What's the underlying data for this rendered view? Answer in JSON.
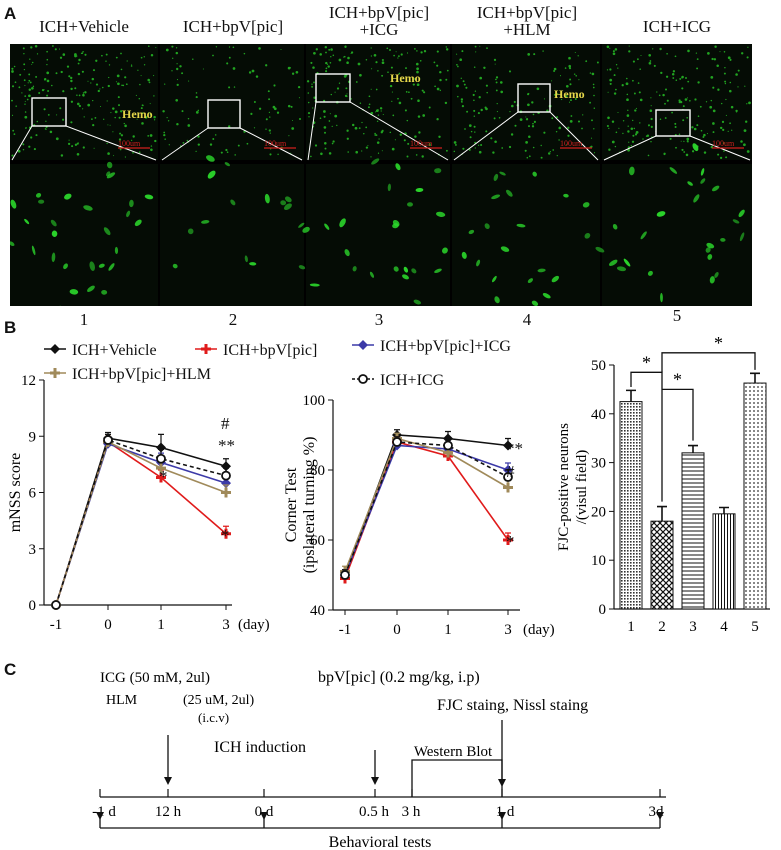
{
  "panels": {
    "a": "A",
    "b": "B",
    "c": "C"
  },
  "panel_a": {
    "columns": [
      {
        "title_line1": "ICH+Vehicle",
        "title_line2": "",
        "number": "1",
        "hemo": "Hemo",
        "scale_bar": "100um"
      },
      {
        "title_line1": "ICH+bpV[pic]",
        "title_line2": "",
        "number": "2",
        "hemo": "",
        "scale_bar": "100um"
      },
      {
        "title_line1": "ICH+bpV[pic]",
        "title_line2": "+ICG",
        "number": "3",
        "hemo": "Hemo",
        "scale_bar": "100um"
      },
      {
        "title_line1": "ICH+bpV[pic]",
        "title_line2": "+HLM",
        "number": "4",
        "hemo": "Hemo",
        "scale_bar": "100um"
      },
      {
        "title_line1": "ICH+ICG",
        "title_line2": "",
        "number": "5",
        "hemo": "",
        "scale_bar": "100um"
      }
    ],
    "colors": {
      "green": "#2bd62b",
      "background": "#050c05",
      "hemo_label": "#e6d84a",
      "scale_bar": "#d11f1f"
    }
  },
  "legend": [
    {
      "name": "ICH+Vehicle",
      "color": "#111111",
      "marker": "diamond",
      "dash": "solid"
    },
    {
      "name": "ICH+bpV[pic]",
      "color": "#e01b1b",
      "marker": "plus",
      "dash": "solid"
    },
    {
      "name": "ICH+bpV[pic]+ICG",
      "color": "#3c3aa8",
      "marker": "diamond",
      "dash": "solid"
    },
    {
      "name": "ICH+bpV[pic]+HLM",
      "color": "#a08a5a",
      "marker": "plus",
      "dash": "solid"
    },
    {
      "name": "ICH+ICG",
      "color": "#111111",
      "marker": "circle",
      "dash": "dashed"
    }
  ],
  "chart_data": [
    {
      "type": "line",
      "ylabel": "mNSS score",
      "xunit": "(day)",
      "x": [
        "-1",
        "0",
        "1",
        "3"
      ],
      "ylim": [
        0,
        12
      ],
      "yticks": [
        "0",
        "3",
        "6",
        "9",
        "12"
      ],
      "series": [
        {
          "name": "ICH+Vehicle",
          "values": [
            0,
            8.9,
            8.4,
            7.4
          ],
          "err": [
            0,
            0.3,
            0.7,
            0.4
          ]
        },
        {
          "name": "ICH+bpV[pic]",
          "values": [
            0,
            8.7,
            6.8,
            3.8
          ],
          "err": [
            0,
            0.3,
            0.4,
            0.4
          ]
        },
        {
          "name": "ICH+bpV[pic]+ICG",
          "values": [
            0,
            8.6,
            7.6,
            6.5
          ],
          "err": [
            0,
            0.3,
            0.5,
            0.4
          ]
        },
        {
          "name": "ICH+bpV[pic]+HLM",
          "values": [
            0,
            8.7,
            7.3,
            6.0
          ],
          "err": [
            0,
            0.3,
            0.5,
            0.4
          ]
        },
        {
          "name": "ICH+ICG",
          "values": [
            0,
            8.8,
            7.8,
            6.9
          ],
          "err": [
            0,
            0.3,
            0.5,
            0.4
          ]
        }
      ],
      "annotations": [
        "#",
        "**",
        "*",
        "*"
      ]
    },
    {
      "type": "line",
      "ylabel_line1": "Corner Test",
      "ylabel_line2": "(ipslateral turning %)",
      "xunit": "(day)",
      "x": [
        "-1",
        "0",
        "1",
        "3"
      ],
      "ylim": [
        40,
        100
      ],
      "yticks": [
        "40",
        "60",
        "80",
        "100"
      ],
      "series": [
        {
          "name": "ICH+Vehicle",
          "values": [
            50,
            90,
            89,
            87
          ],
          "err": [
            1.5,
            1.5,
            2,
            2
          ]
        },
        {
          "name": "ICH+bpV[pic]",
          "values": [
            49,
            88,
            84,
            60
          ],
          "err": [
            1.5,
            1.5,
            2,
            2
          ]
        },
        {
          "name": "ICH+bpV[pic]+ICG",
          "values": [
            50,
            87,
            86,
            80
          ],
          "err": [
            1.5,
            1.5,
            2,
            2
          ]
        },
        {
          "name": "ICH+bpV[pic]+HLM",
          "values": [
            51,
            89,
            85,
            75
          ],
          "err": [
            1.5,
            1.5,
            2,
            2
          ]
        },
        {
          "name": "ICH+ICG",
          "values": [
            50,
            88,
            87,
            78
          ],
          "err": [
            1.5,
            1.5,
            2,
            2
          ]
        }
      ],
      "annotations": [
        "**",
        "#",
        "*"
      ]
    },
    {
      "type": "bar",
      "ylabel_line1": "FJC-positive neurons",
      "ylabel_line2": "/(visul field)",
      "categories": [
        "1",
        "2",
        "3",
        "4",
        "5"
      ],
      "values": [
        42.5,
        18,
        32,
        19.5,
        46.3
      ],
      "err": [
        2.3,
        3,
        1.5,
        1.3,
        2
      ],
      "ylim": [
        0,
        50
      ],
      "yticks": [
        "0",
        "10",
        "20",
        "30",
        "40",
        "50"
      ],
      "patterns": [
        "dense-dots",
        "crosshatch",
        "horizontal",
        "vertical",
        "dots"
      ],
      "significance": [
        "*",
        "*",
        "*"
      ]
    }
  ],
  "timeline": {
    "ticks": [
      "-1 d",
      "12 h",
      "0 d",
      "0.5 h",
      "3 h",
      "1 d",
      "3d"
    ],
    "icg_line1": "ICG (50 mM, 2ul)",
    "hlm_line": "HLM",
    "hlm_detail": "(25 uM, 2ul)",
    "icv": "(i.c.v)",
    "bpv": "bpV[pic] (0.2 mg/kg,  i.p)",
    "ich_induction": "ICH induction",
    "fjc": "FJC staing, Nissl staing",
    "western": "Western Blot",
    "behavioral": "Behavioral tests"
  }
}
